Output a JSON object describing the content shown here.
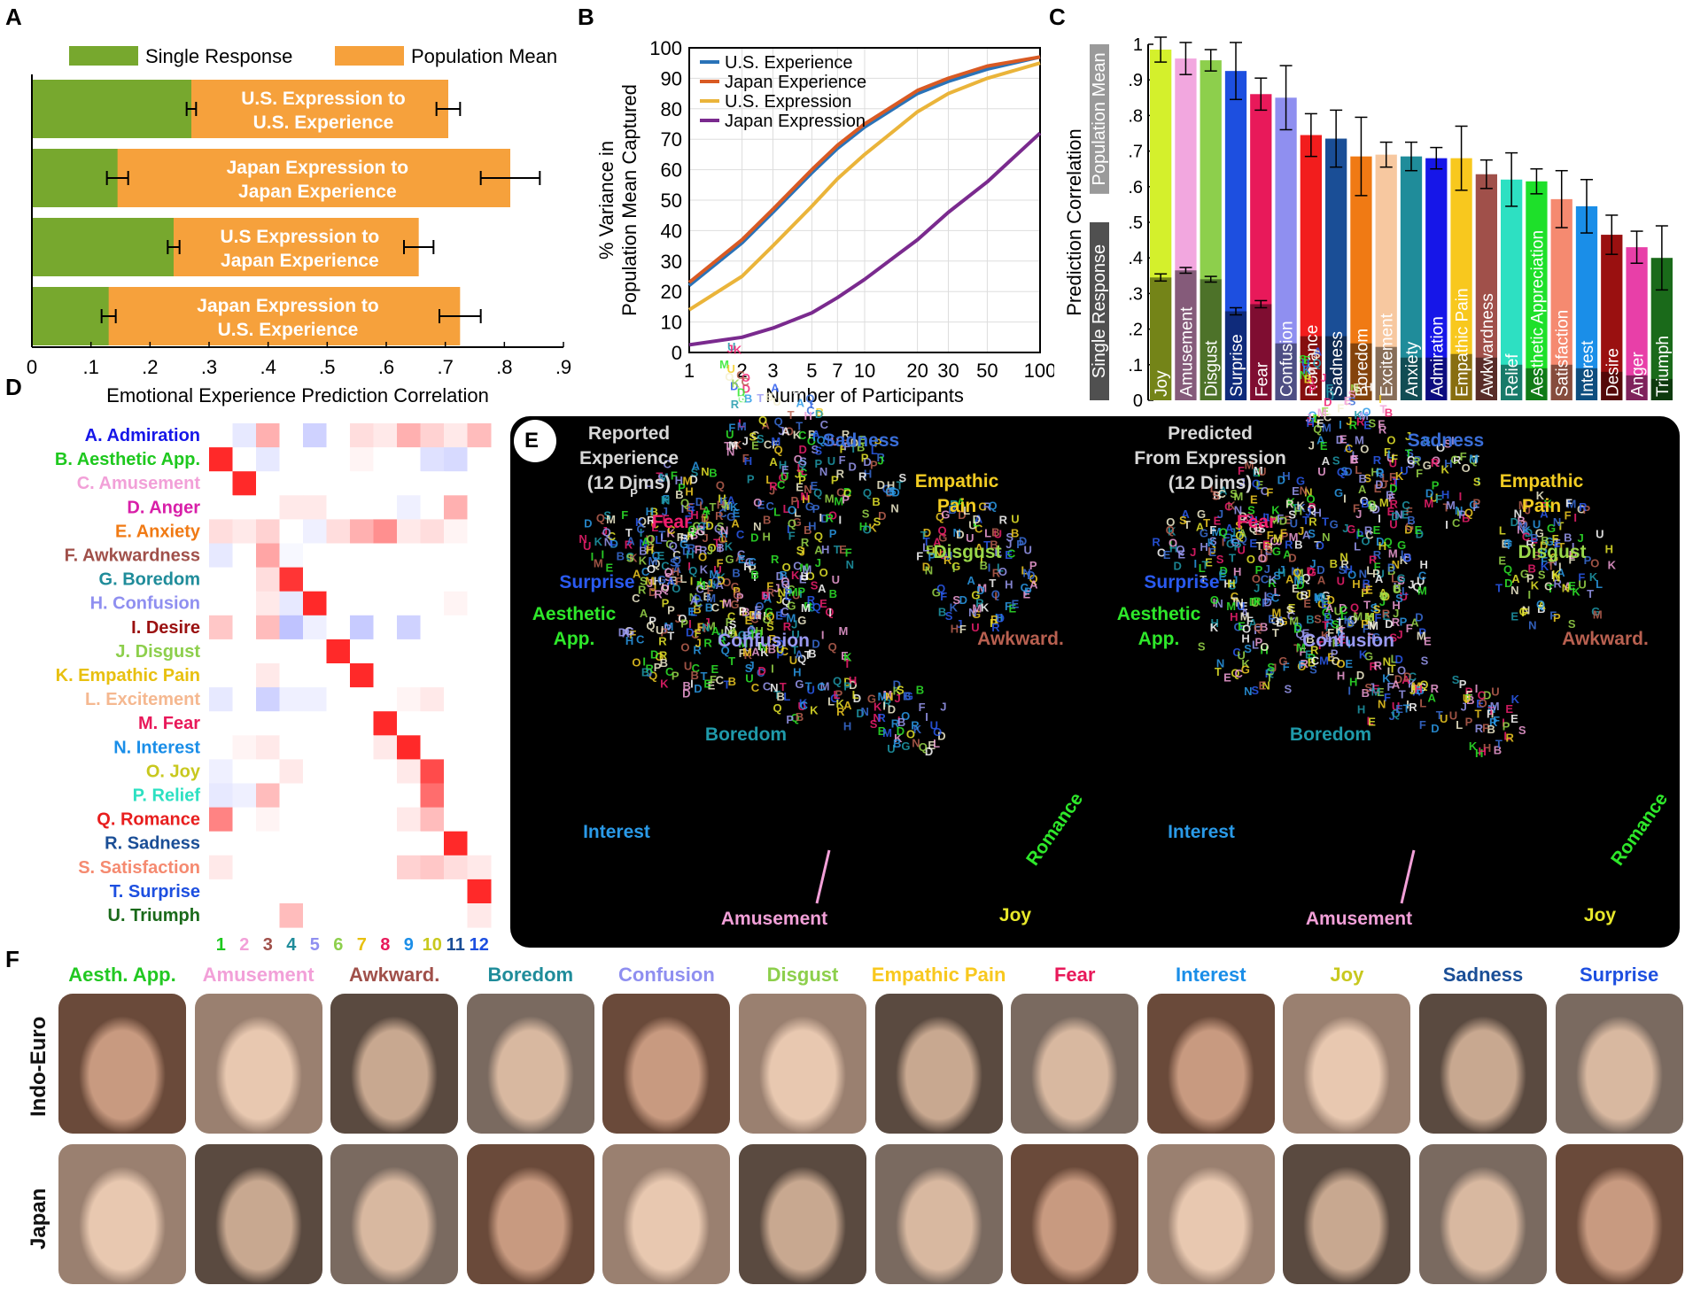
{
  "panels": {
    "a": "A",
    "b": "B",
    "c": "C",
    "d": "D",
    "e": "E",
    "f": "F"
  },
  "chart_data": [
    {
      "type": "bar",
      "panel": "A",
      "orientation": "horizontal-stacked",
      "legend": [
        "Single Response",
        "Population Mean"
      ],
      "colors": {
        "single": "#77a82e",
        "population": "#f6a13c"
      },
      "categories": [
        [
          "U.S. Expression to",
          "U.S. Experience"
        ],
        [
          "Japan Expression to",
          "Japan Experience"
        ],
        [
          "U.S Expression to",
          "Japan Experience"
        ],
        [
          "Japan Expression to",
          "U.S. Experience"
        ]
      ],
      "single": [
        0.27,
        0.145,
        0.24,
        0.13
      ],
      "single_err": [
        0.008,
        0.018,
        0.01,
        0.012
      ],
      "population": [
        0.705,
        0.81,
        0.655,
        0.725
      ],
      "population_err": [
        0.02,
        0.05,
        0.025,
        0.035
      ],
      "xlabel": "Emotional Experience Prediction Correlation",
      "xticks": [
        "0",
        ".1",
        ".2",
        ".3",
        ".4",
        ".5",
        ".6",
        ".7",
        ".8",
        ".9"
      ],
      "xlim": [
        0,
        0.9
      ]
    },
    {
      "type": "line",
      "panel": "B",
      "xlabel": "Number of Participants",
      "ylabel": [
        "% Variance in",
        "Population Mean Captured"
      ],
      "xscale": "log",
      "xlim": [
        1,
        100
      ],
      "ylim": [
        0,
        100
      ],
      "xticks": [
        1,
        2,
        3,
        5,
        7,
        10,
        20,
        30,
        50,
        100
      ],
      "xtick_labels": [
        "1",
        "2",
        "3",
        "5",
        "7",
        "10",
        "20",
        "30",
        "50",
        "100"
      ],
      "yticks": [
        0,
        10,
        20,
        30,
        40,
        50,
        60,
        70,
        80,
        90,
        100
      ],
      "series": [
        {
          "name": "U.S. Experience",
          "color": "#2a73b8",
          "x": [
            1,
            2,
            3,
            5,
            7,
            10,
            20,
            30,
            50,
            100
          ],
          "y": [
            22,
            36,
            46,
            59,
            67,
            74,
            85,
            89,
            93,
            97
          ]
        },
        {
          "name": "Japan Experience",
          "color": "#d95a23",
          "x": [
            1,
            2,
            3,
            5,
            7,
            10,
            20,
            30,
            50,
            100
          ],
          "y": [
            23,
            37,
            47,
            60,
            68,
            75,
            86,
            90,
            94,
            97
          ]
        },
        {
          "name": "U.S. Expression",
          "color": "#eab43a",
          "x": [
            1,
            2,
            3,
            5,
            7,
            10,
            20,
            30,
            50,
            100
          ],
          "y": [
            14,
            25,
            35,
            48,
            57,
            65,
            79,
            85,
            90,
            95
          ]
        },
        {
          "name": "Japan Expression",
          "color": "#7a2a8e",
          "x": [
            1,
            2,
            3,
            5,
            7,
            10,
            20,
            30,
            50,
            100
          ],
          "y": [
            2.5,
            5,
            8,
            13,
            18,
            24,
            37,
            46,
            56,
            72
          ]
        }
      ]
    },
    {
      "type": "bar",
      "panel": "C",
      "ylabel": "Prediction Correlation",
      "group_labels": {
        "single": "Single Response",
        "population": "Population Mean"
      },
      "ylim": [
        0,
        1
      ],
      "yticks": [
        0,
        0.1,
        0.2,
        0.3,
        0.4,
        0.5,
        0.6,
        0.7,
        0.8,
        0.9,
        1
      ],
      "ytick_labels": [
        "0",
        ".1",
        ".2",
        ".3",
        ".4",
        ".5",
        ".6",
        ".7",
        ".8",
        ".9",
        "1"
      ],
      "categories": [
        "Joy",
        "Amusement",
        "Disgust",
        "Surprise",
        "Fear",
        "Confusion",
        "Romance",
        "Sadness",
        "Boredom",
        "Excitement",
        "Anxiety",
        "Admiration",
        "Empathic Pain",
        "Awkwardness",
        "Relief",
        "Aesthetic Appreciation",
        "Satisfaction",
        "Interest",
        "Desire",
        "Anger",
        "Triumph"
      ],
      "colors": [
        "#d4f02c",
        "#f2a7df",
        "#8dcf4c",
        "#1d4fe0",
        "#e8195a",
        "#8f8ff0",
        "#f21d1d",
        "#1a4e96",
        "#f07a14",
        "#f7c8a0",
        "#1f8c9a",
        "#1616e8",
        "#f8c81e",
        "#a0504a",
        "#2de0c2",
        "#1ee02a",
        "#f58a70",
        "#1a8ee8",
        "#9a1010",
        "#e83fa8",
        "#1a6a1a"
      ],
      "single": [
        0.345,
        0.365,
        0.34,
        0.25,
        0.27,
        0.16,
        0.18,
        0.18,
        0.16,
        0.15,
        0.12,
        0.12,
        0.13,
        0.12,
        0.1,
        0.09,
        0.1,
        0.09,
        0.08,
        0.07,
        0.06
      ],
      "single_err": [
        0.01,
        0.008,
        0.008,
        0.01,
        0.01,
        0,
        0,
        0,
        0,
        0,
        0,
        0,
        0,
        0,
        0,
        0,
        0,
        0,
        0,
        0,
        0
      ],
      "population": [
        0.985,
        0.96,
        0.955,
        0.925,
        0.86,
        0.85,
        0.745,
        0.735,
        0.685,
        0.69,
        0.685,
        0.68,
        0.68,
        0.635,
        0.62,
        0.615,
        0.565,
        0.545,
        0.465,
        0.43,
        0.4
      ],
      "population_err": [
        0.035,
        0.045,
        0.03,
        0.08,
        0.045,
        0.09,
        0.06,
        0.08,
        0.11,
        0.035,
        0.04,
        0.03,
        0.09,
        0.04,
        0.075,
        0.035,
        0.08,
        0.075,
        0.055,
        0.045,
        0.09
      ]
    },
    {
      "type": "heatmap",
      "panel": "D",
      "rows": [
        "A. Admiration",
        "B. Aesthetic App.",
        "C. Amusement",
        "D. Anger",
        "E. Anxiety",
        "F. Awkwardness",
        "G. Boredom",
        "H. Confusion",
        "I. Desire",
        "J. Disgust",
        "K. Empathic Pain",
        "L. Excitement",
        "M. Fear",
        "N. Interest",
        "O. Joy",
        "P. Relief",
        "Q. Romance",
        "R. Sadness",
        "S. Satisfaction",
        "T. Surprise",
        "U. Triumph"
      ],
      "row_colors": [
        "#1616e8",
        "#1ec81e",
        "#f2a0d8",
        "#d81ea8",
        "#f07a14",
        "#a0504a",
        "#1f8c9a",
        "#8f8ff0",
        "#9a1010",
        "#8dcf4c",
        "#e8c010",
        "#f5b890",
        "#e8195a",
        "#1a8ee8",
        "#c8c81e",
        "#2de0c2",
        "#e81e1e",
        "#1a4e96",
        "#f58a70",
        "#1d4fe0",
        "#1a6a1a"
      ],
      "cols": [
        "1",
        "2",
        "3",
        "4",
        "5",
        "6",
        "7",
        "8",
        "9",
        "10",
        "11",
        "12"
      ],
      "col_colors": [
        "#1ec81e",
        "#f2a0d8",
        "#a0504a",
        "#1f8c9a",
        "#8f8ff0",
        "#8dcf4c",
        "#e8c010",
        "#e8195a",
        "#1a8ee8",
        "#c8c81e",
        "#1a4e96",
        "#1d4fe0"
      ],
      "values": [
        [
          0,
          -0.15,
          0.35,
          0,
          -0.3,
          0,
          0.15,
          0.1,
          0.35,
          0.2,
          0.1,
          0.3
        ],
        [
          0.95,
          0,
          -0.15,
          0,
          0,
          0,
          0.05,
          0,
          0,
          -0.2,
          -0.25,
          0
        ],
        [
          0,
          0.95,
          0,
          0,
          0,
          0,
          0,
          0,
          0,
          0,
          0,
          0
        ],
        [
          0,
          0,
          0,
          0.1,
          0.1,
          0,
          0,
          0,
          -0.1,
          0,
          0.35,
          0
        ],
        [
          0.15,
          0.1,
          0.2,
          0,
          -0.1,
          0.15,
          0.35,
          0.5,
          0.1,
          0.15,
          0.05,
          0
        ],
        [
          -0.15,
          0,
          0.4,
          -0.05,
          0,
          0,
          0,
          0,
          0,
          0,
          0,
          0
        ],
        [
          0,
          0,
          0.15,
          0.9,
          0,
          0,
          0,
          0,
          0,
          0,
          0,
          0
        ],
        [
          0,
          0,
          0.1,
          -0.15,
          0.95,
          0,
          0,
          0,
          0,
          0,
          0.05,
          0
        ],
        [
          0.25,
          0,
          0.3,
          -0.4,
          -0.1,
          0,
          -0.35,
          0,
          -0.3,
          0,
          0,
          0
        ],
        [
          0,
          0,
          0,
          0,
          0,
          0.95,
          0,
          0,
          0,
          0,
          0,
          0
        ],
        [
          0,
          0,
          0.1,
          0,
          0,
          0,
          0.95,
          0,
          0,
          0,
          0,
          0
        ],
        [
          -0.15,
          0,
          -0.3,
          -0.1,
          -0.1,
          0,
          0,
          0,
          0.05,
          0.1,
          0,
          0
        ],
        [
          0,
          0,
          0,
          0,
          0,
          0,
          0,
          0.95,
          0,
          0,
          0,
          0
        ],
        [
          0,
          0.05,
          0.1,
          0,
          0,
          0,
          0,
          0.1,
          0.95,
          0,
          0,
          0
        ],
        [
          -0.1,
          0,
          0,
          0.1,
          0,
          0,
          0,
          0,
          0.1,
          0.8,
          0,
          0
        ],
        [
          -0.15,
          -0.1,
          0.3,
          0,
          0,
          0,
          0,
          0,
          0,
          0.65,
          0,
          0
        ],
        [
          0.55,
          0,
          0.05,
          0,
          0,
          0,
          0,
          0,
          0.1,
          0.3,
          0,
          0
        ],
        [
          0,
          0,
          0,
          0,
          0,
          0,
          0,
          0,
          0,
          0,
          0.95,
          0
        ],
        [
          0.1,
          0,
          0,
          0,
          0,
          0,
          0,
          0,
          0.2,
          0.25,
          0.15,
          0.1
        ],
        [
          0,
          0,
          0,
          0,
          0,
          0,
          0,
          0,
          0,
          0,
          0,
          0.95
        ],
        [
          0,
          0,
          0,
          0.3,
          0,
          0,
          0,
          0,
          0,
          0,
          0,
          0.1
        ]
      ]
    }
  ],
  "panel_e": {
    "left_title": [
      "Reported",
      "Experience",
      "(12 Dims)"
    ],
    "right_title": [
      "Predicted",
      "From Expression",
      "(12 Dims)"
    ],
    "labels": [
      {
        "text": "Sadness",
        "color": "#3a6ed8"
      },
      {
        "text": "Empathic",
        "color": "#f2cc22"
      },
      {
        "text": "Pain",
        "color": "#f2cc22"
      },
      {
        "text": "Fear",
        "color": "#f01e6e"
      },
      {
        "text": "Disgust",
        "color": "#9ad84a"
      },
      {
        "text": "Surprise",
        "color": "#2a5af0"
      },
      {
        "text": "Aesthetic",
        "color": "#2ee82a"
      },
      {
        "text": "App.",
        "color": "#2ee82a"
      },
      {
        "text": "Confusion",
        "color": "#9a9af2"
      },
      {
        "text": "Awkward.",
        "color": "#b86050"
      },
      {
        "text": "Boredom",
        "color": "#1f9aaa"
      },
      {
        "text": "Interest",
        "color": "#2a9ae8"
      },
      {
        "text": "Romance",
        "color": "#2ee82a"
      },
      {
        "text": "Amusement",
        "color": "#f2a0d8"
      },
      {
        "text": "Joy",
        "color": "#e8e82a"
      }
    ],
    "scatter_letters": [
      "A",
      "B",
      "C",
      "D",
      "E",
      "F",
      "G",
      "H",
      "I",
      "J",
      "K",
      "L",
      "M",
      "N",
      "O",
      "P",
      "Q",
      "R",
      "S",
      "T",
      "U"
    ]
  },
  "panel_f": {
    "headers": [
      {
        "text": "Aesth. App.",
        "color": "#22c822"
      },
      {
        "text": "Amusement",
        "color": "#f2a0d8"
      },
      {
        "text": "Awkward.",
        "color": "#a0504a"
      },
      {
        "text": "Boredom",
        "color": "#1f8c9a"
      },
      {
        "text": "Confusion",
        "color": "#8f8ff0"
      },
      {
        "text": "Disgust",
        "color": "#8dcf4c"
      },
      {
        "text": "Empathic Pain",
        "color": "#f8c81e"
      },
      {
        "text": "Fear",
        "color": "#e8195a"
      },
      {
        "text": "Interest",
        "color": "#1a8ee8"
      },
      {
        "text": "Joy",
        "color": "#c8c81e"
      },
      {
        "text": "Sadness",
        "color": "#1a4e96"
      },
      {
        "text": "Surprise",
        "color": "#1d4fe0"
      }
    ],
    "rows": [
      "Indo-Euro",
      "Japan"
    ]
  }
}
